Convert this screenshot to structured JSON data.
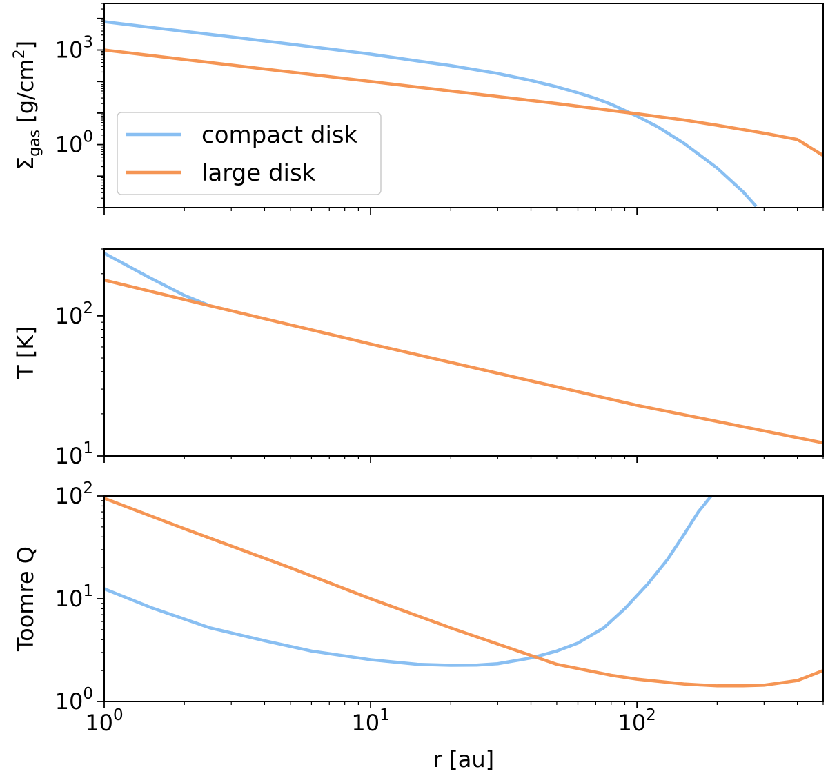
{
  "chart_data": [
    {
      "type": "line",
      "id": "sigma",
      "ylabel": "Σgas [g/cm2]",
      "ylabel_parts": {
        "sym": "Σ",
        "sub": "gas",
        "unit_pre": " [g/cm",
        "sup": "2",
        "unit_post": "]"
      },
      "xscale": "log",
      "yscale": "log",
      "xlim": [
        1,
        500
      ],
      "ylim": [
        0.01,
        30000
      ],
      "yticks": [
        {
          "value": 1,
          "base": "10",
          "exp": "0"
        },
        {
          "value": 1000,
          "base": "10",
          "exp": "3"
        }
      ],
      "legend": {
        "placement": "center-left",
        "entries": [
          "compact disk",
          "large disk"
        ]
      },
      "series": [
        {
          "name": "compact disk",
          "color": "#89bff2",
          "x": [
            1,
            1.5,
            2,
            3,
            5,
            7,
            10,
            15,
            20,
            30,
            40,
            50,
            60,
            70,
            80,
            100,
            120,
            150,
            200,
            250,
            280
          ],
          "y": [
            7900,
            5200,
            3900,
            2600,
            1540,
            1080,
            740,
            450,
            320,
            180,
            108,
            68,
            44,
            29,
            19,
            8,
            3.6,
            1.1,
            0.18,
            0.032,
            0.011
          ]
        },
        {
          "name": "large disk",
          "color": "#f59554",
          "x": [
            1,
            2,
            5,
            10,
            20,
            50,
            80,
            100,
            150,
            200,
            300,
            400,
            500
          ],
          "y": [
            1000,
            500,
            200,
            100,
            50,
            20,
            12,
            9.5,
            6,
            4.1,
            2.3,
            1.45,
            0.45
          ]
        }
      ]
    },
    {
      "type": "line",
      "id": "temperature",
      "ylabel": "T [K]",
      "xscale": "log",
      "yscale": "log",
      "xlim": [
        1,
        500
      ],
      "ylim": [
        10,
        300
      ],
      "yticks": [
        {
          "value": 10,
          "base": "10",
          "exp": "1"
        },
        {
          "value": 100,
          "base": "10",
          "exp": "2"
        }
      ],
      "series": [
        {
          "name": "compact disk",
          "color": "#89bff2",
          "x": [
            1,
            1.5,
            2,
            2.5
          ],
          "y": [
            280,
            185,
            140,
            118
          ]
        },
        {
          "name": "large disk",
          "color": "#f59554",
          "x": [
            1,
            2.5,
            10,
            100,
            500
          ],
          "y": [
            180,
            118,
            63,
            23,
            12.4
          ]
        }
      ]
    },
    {
      "type": "line",
      "id": "toomre",
      "ylabel": "Toomre Q",
      "xlabel": "r [au]",
      "xscale": "log",
      "yscale": "log",
      "xlim": [
        1,
        500
      ],
      "ylim": [
        1,
        100
      ],
      "xticks": [
        {
          "value": 1,
          "base": "10",
          "exp": "0"
        },
        {
          "value": 10,
          "base": "10",
          "exp": "1"
        },
        {
          "value": 100,
          "base": "10",
          "exp": "2"
        }
      ],
      "yticks": [
        {
          "value": 1,
          "base": "10",
          "exp": "0"
        },
        {
          "value": 10,
          "base": "10",
          "exp": "1"
        },
        {
          "value": 100,
          "base": "10",
          "exp": "2"
        }
      ],
      "series": [
        {
          "name": "compact disk",
          "color": "#89bff2",
          "x": [
            1,
            1.5,
            2.5,
            4,
            6,
            10,
            15,
            20,
            25,
            30,
            40,
            50,
            60,
            75,
            90,
            110,
            130,
            150,
            170,
            190
          ],
          "y": [
            12.5,
            8.2,
            5.2,
            3.9,
            3.1,
            2.55,
            2.3,
            2.25,
            2.26,
            2.33,
            2.65,
            3.1,
            3.7,
            5.2,
            8,
            14,
            24,
            42,
            70,
            100
          ]
        },
        {
          "name": "large disk",
          "color": "#f59554",
          "x": [
            1,
            2,
            5,
            10,
            20,
            50,
            80,
            100,
            150,
            200,
            250,
            300,
            400,
            500
          ],
          "y": [
            95,
            48,
            20,
            10,
            5.2,
            2.3,
            1.8,
            1.65,
            1.48,
            1.42,
            1.42,
            1.44,
            1.6,
            2.0
          ]
        }
      ]
    }
  ]
}
